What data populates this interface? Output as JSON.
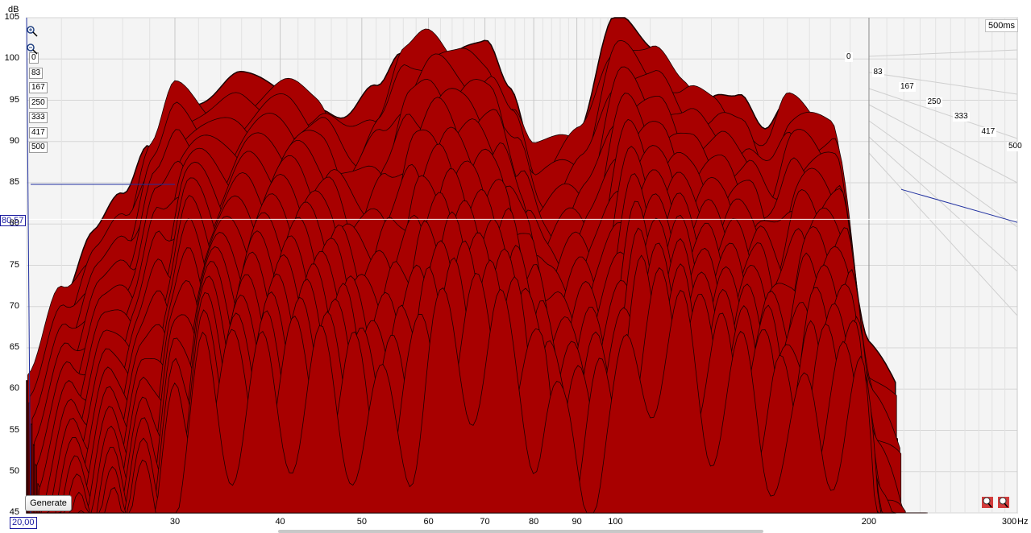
{
  "chart_data": {
    "type": "area",
    "title": "",
    "xlabel": "Hz",
    "ylabel": "dB",
    "x_scale": "log",
    "xlim": [
      20,
      300
    ],
    "ylim": [
      45,
      105
    ],
    "x_ticks": [
      30,
      40,
      50,
      60,
      70,
      80,
      90,
      100,
      200,
      300
    ],
    "y_ticks": [
      45,
      50,
      55,
      60,
      65,
      70,
      75,
      80,
      85,
      90,
      95,
      100,
      105
    ],
    "time_axis_label": "500ms",
    "time_slices_ms": [
      "0",
      "83",
      "167",
      "250",
      "333",
      "417",
      "500"
    ],
    "cursor_level": "80,57",
    "cursor_frequency": "20,00",
    "frequency_response_0ms": {
      "x": [
        20,
        22,
        24,
        26,
        28,
        30,
        33,
        36,
        40,
        44,
        48,
        52,
        56,
        60,
        65,
        70,
        75,
        80,
        90,
        100,
        110,
        120,
        130,
        140,
        150,
        160,
        180,
        200
      ],
      "y": [
        62,
        72,
        78,
        82,
        90,
        96.5,
        95,
        96.5,
        97,
        95.5,
        92,
        95,
        101,
        103,
        101.5,
        100.5,
        95,
        89,
        92,
        103.5,
        101,
        97.5,
        96,
        94,
        90,
        95,
        93,
        70
      ]
    },
    "color": "#a80000",
    "grid": true
  },
  "controls": {
    "generate_label": "Generate"
  }
}
